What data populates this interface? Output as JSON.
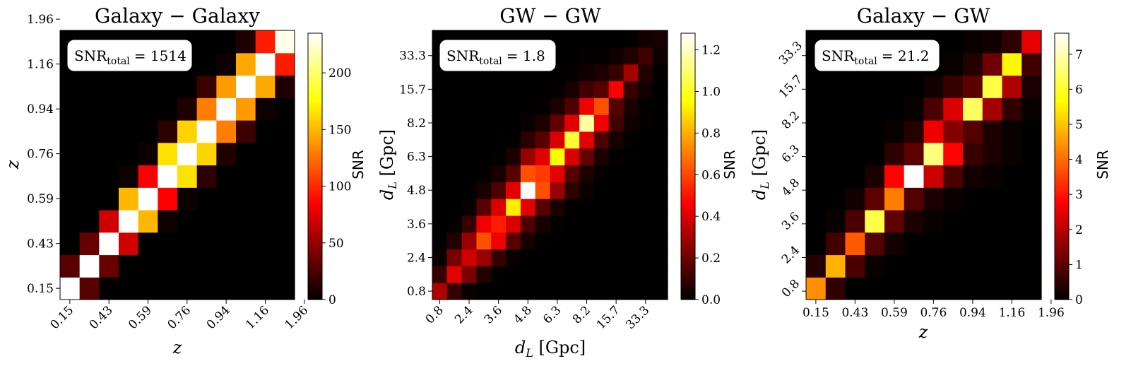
{
  "panels": [
    {
      "title": "Galaxy − Galaxy",
      "snr_label": "SNR",
      "snr_subscript": "total",
      "snr_value": "= 1514",
      "xlabel": "z",
      "xlabel_unit": "",
      "ylabel": "z",
      "ylabel_unit": "",
      "cbar_label": "SNR"
    },
    {
      "title": "GW − GW",
      "snr_label": "SNR",
      "snr_subscript": "total",
      "snr_value": "= 1.8",
      "xlabel": "d",
      "xlabel_sub": "L",
      "xlabel_unit": " [Gpc]",
      "ylabel": "d",
      "ylabel_sub": "L",
      "ylabel_unit": " [Gpc]",
      "cbar_label": "SNR"
    },
    {
      "title": "Galaxy − GW",
      "snr_label": "SNR",
      "snr_subscript": "total",
      "snr_value": "= 21.2",
      "xlabel": "z",
      "xlabel_unit": "",
      "ylabel": "d",
      "ylabel_sub": "L",
      "ylabel_unit": " [Gpc]",
      "cbar_label": "SNR"
    }
  ],
  "chart_data": [
    {
      "type": "heatmap",
      "title": "Galaxy − Galaxy",
      "xlabel": "z",
      "ylabel": "z",
      "x_tick_labels": [
        "0.15",
        "0.43",
        "0.59",
        "0.76",
        "0.94",
        "1.16",
        "1.96"
      ],
      "y_tick_labels": [
        "0.15",
        "0.43",
        "0.59",
        "0.76",
        "0.94",
        "1.16",
        "1.96"
      ],
      "n_bins": 12,
      "colorbar": {
        "label": "SNR",
        "range": [
          0,
          235
        ],
        "ticks": [
          "0",
          "50",
          "100",
          "150",
          "200"
        ],
        "tick_values": [
          0,
          50,
          100,
          150,
          200
        ]
      },
      "annotation": "SNR_total = 1514",
      "values": [
        [
          235,
          30,
          0,
          0,
          0,
          0,
          0,
          0,
          0,
          0,
          0,
          0
        ],
        [
          30,
          235,
          35,
          0,
          0,
          0,
          0,
          0,
          0,
          0,
          0,
          0
        ],
        [
          0,
          35,
          235,
          70,
          0,
          0,
          0,
          0,
          0,
          0,
          0,
          0
        ],
        [
          0,
          0,
          70,
          235,
          150,
          5,
          0,
          0,
          0,
          0,
          0,
          0
        ],
        [
          0,
          0,
          0,
          150,
          235,
          85,
          5,
          0,
          0,
          0,
          0,
          0
        ],
        [
          0,
          0,
          0,
          5,
          85,
          235,
          165,
          15,
          0,
          0,
          0,
          0
        ],
        [
          0,
          0,
          0,
          0,
          5,
          165,
          235,
          160,
          10,
          0,
          0,
          0
        ],
        [
          0,
          0,
          0,
          0,
          0,
          15,
          160,
          235,
          130,
          20,
          0,
          0
        ],
        [
          0,
          0,
          0,
          0,
          0,
          0,
          10,
          130,
          235,
          140,
          5,
          0
        ],
        [
          0,
          0,
          0,
          0,
          0,
          0,
          0,
          20,
          140,
          235,
          145,
          10
        ],
        [
          0,
          0,
          0,
          0,
          0,
          0,
          0,
          0,
          5,
          145,
          235,
          95
        ],
        [
          0,
          0,
          0,
          0,
          0,
          0,
          0,
          0,
          0,
          10,
          95,
          230
        ]
      ]
    },
    {
      "type": "heatmap",
      "title": "GW − GW",
      "xlabel": "d_L [Gpc]",
      "ylabel": "d_L [Gpc]",
      "x_tick_labels": [
        "0.8",
        "2.4",
        "3.6",
        "4.8",
        "6.3",
        "8.2",
        "15.7",
        "33.3"
      ],
      "y_tick_labels": [
        "0.8",
        "2.4",
        "3.6",
        "4.8",
        "6.3",
        "8.2",
        "15.7",
        "33.3"
      ],
      "n_bins": 16,
      "colorbar": {
        "label": "SNR",
        "range": [
          0,
          1.28
        ],
        "ticks": [
          "0.0",
          "0.2",
          "0.4",
          "0.6",
          "0.8",
          "1.0",
          "1.2"
        ],
        "tick_values": [
          0,
          0.2,
          0.4,
          0.6,
          0.8,
          1.0,
          1.2
        ]
      },
      "annotation": "SNR_total = 1.8",
      "values": [
        [
          0.32,
          0.1,
          0.02,
          0,
          0,
          0,
          0,
          0,
          0,
          0,
          0,
          0,
          0,
          0,
          0,
          0
        ],
        [
          0.1,
          0.42,
          0.22,
          0.06,
          0.01,
          0,
          0,
          0,
          0,
          0,
          0,
          0,
          0,
          0,
          0,
          0
        ],
        [
          0.02,
          0.22,
          0.38,
          0.28,
          0.1,
          0.02,
          0,
          0,
          0,
          0,
          0,
          0,
          0,
          0,
          0,
          0
        ],
        [
          0,
          0.06,
          0.28,
          0.62,
          0.44,
          0.16,
          0.04,
          0.01,
          0,
          0,
          0,
          0,
          0,
          0,
          0,
          0
        ],
        [
          0,
          0.01,
          0.1,
          0.44,
          0.52,
          0.4,
          0.14,
          0.04,
          0.01,
          0,
          0,
          0,
          0,
          0,
          0,
          0
        ],
        [
          0,
          0,
          0.02,
          0.16,
          0.4,
          0.92,
          0.42,
          0.16,
          0.05,
          0.01,
          0,
          0,
          0,
          0,
          0,
          0
        ],
        [
          0,
          0,
          0,
          0.04,
          0.14,
          0.42,
          1.28,
          0.62,
          0.28,
          0.08,
          0.02,
          0,
          0,
          0,
          0,
          0
        ],
        [
          0,
          0,
          0,
          0.01,
          0.04,
          0.16,
          0.62,
          0.58,
          0.42,
          0.16,
          0.05,
          0.01,
          0,
          0,
          0,
          0
        ],
        [
          0,
          0,
          0,
          0,
          0.01,
          0.05,
          0.28,
          0.42,
          0.96,
          0.4,
          0.18,
          0.05,
          0.01,
          0,
          0,
          0
        ],
        [
          0,
          0,
          0,
          0,
          0,
          0.01,
          0.08,
          0.16,
          0.4,
          1.02,
          0.42,
          0.14,
          0.04,
          0.01,
          0,
          0
        ],
        [
          0,
          0,
          0,
          0,
          0,
          0,
          0.02,
          0.05,
          0.18,
          0.42,
          1.16,
          0.44,
          0.12,
          0.03,
          0.01,
          0
        ],
        [
          0,
          0,
          0,
          0,
          0,
          0,
          0,
          0.01,
          0.05,
          0.14,
          0.44,
          0.62,
          0.16,
          0.05,
          0.01,
          0
        ],
        [
          0,
          0,
          0,
          0,
          0,
          0,
          0,
          0,
          0.01,
          0.04,
          0.12,
          0.16,
          0.46,
          0.1,
          0.03,
          0
        ],
        [
          0,
          0,
          0,
          0,
          0,
          0,
          0,
          0,
          0,
          0.01,
          0.03,
          0.05,
          0.1,
          0.3,
          0.06,
          0.01
        ],
        [
          0,
          0,
          0,
          0,
          0,
          0,
          0,
          0,
          0,
          0,
          0.01,
          0.01,
          0.03,
          0.06,
          0.12,
          0.03
        ],
        [
          0,
          0,
          0,
          0,
          0,
          0,
          0,
          0,
          0,
          0,
          0,
          0,
          0,
          0.01,
          0.03,
          0.04
        ]
      ]
    },
    {
      "type": "heatmap",
      "title": "Galaxy − GW",
      "xlabel": "z",
      "ylabel": "d_L [Gpc]",
      "x_tick_labels": [
        "0.15",
        "0.43",
        "0.59",
        "0.76",
        "0.94",
        "1.16",
        "1.96"
      ],
      "y_tick_labels": [
        "0.8",
        "2.4",
        "3.6",
        "4.8",
        "6.3",
        "8.2",
        "15.7",
        "33.3"
      ],
      "n_cols": 12,
      "n_rows": 12,
      "colorbar": {
        "label": "SNR",
        "range": [
          0,
          7.6
        ],
        "ticks": [
          "0",
          "1",
          "2",
          "3",
          "4",
          "5",
          "6",
          "7"
        ],
        "tick_values": [
          0,
          1,
          2,
          3,
          4,
          5,
          6,
          7
        ]
      },
      "annotation": "SNR_total = 21.2",
      "values": [
        [
          4.4,
          0.5,
          0,
          0,
          0,
          0,
          0,
          0,
          0,
          0,
          0,
          0
        ],
        [
          0.4,
          4.8,
          0.8,
          0.1,
          0,
          0,
          0,
          0,
          0,
          0,
          0,
          0
        ],
        [
          0,
          0.7,
          3.8,
          0.9,
          0.2,
          0,
          0,
          0,
          0,
          0,
          0,
          0
        ],
        [
          0,
          0.1,
          0.8,
          6.2,
          1.0,
          0.3,
          0.1,
          0,
          0,
          0,
          0,
          0
        ],
        [
          0,
          0,
          0.2,
          1.0,
          4.2,
          0.9,
          0.3,
          0.1,
          0,
          0,
          0,
          0
        ],
        [
          0,
          0,
          0,
          0.3,
          2.8,
          7.6,
          2.2,
          0.8,
          0.2,
          0.1,
          0,
          0
        ],
        [
          0,
          0,
          0,
          0,
          0.5,
          1.0,
          6.6,
          2.8,
          0.6,
          0.3,
          0.1,
          0
        ],
        [
          0,
          0,
          0,
          0,
          0.1,
          0.4,
          2.6,
          1.4,
          0.9,
          0.3,
          0.1,
          0
        ],
        [
          0,
          0,
          0,
          0,
          0,
          0.1,
          0.8,
          2.4,
          6.4,
          1.8,
          0.5,
          0.1
        ],
        [
          0,
          0,
          0,
          0,
          0,
          0,
          0.2,
          0.6,
          1.0,
          6.2,
          1.9,
          0.3
        ],
        [
          0,
          0,
          0,
          0,
          0,
          0,
          0,
          0.1,
          0.4,
          1.2,
          5.6,
          0.7
        ],
        [
          0,
          0,
          0,
          0,
          0,
          0,
          0,
          0,
          0.1,
          0.2,
          0.5,
          2.5
        ]
      ]
    }
  ]
}
